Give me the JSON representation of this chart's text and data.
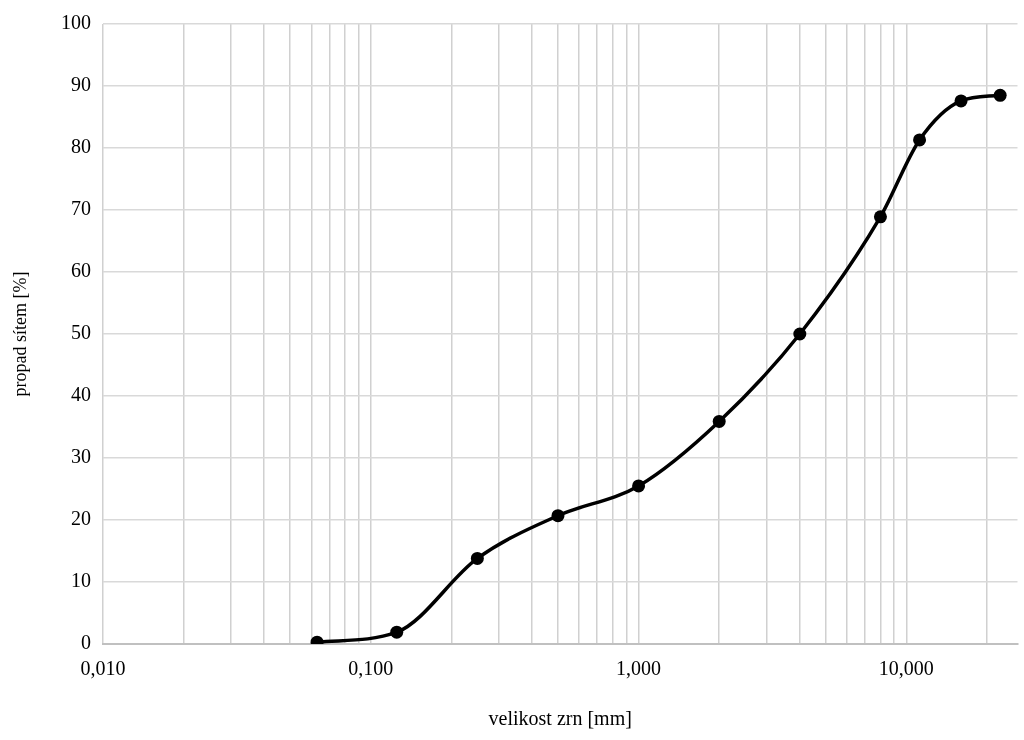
{
  "chart_data": {
    "type": "line",
    "xlabel": "velikost zrn [mm]",
    "ylabel": "propad sítem [%]",
    "x": [
      0.063,
      0.125,
      0.25,
      0.5,
      1,
      2,
      4,
      8,
      11.2,
      16,
      22.4
    ],
    "series": [
      {
        "color": "#000000",
        "values": [
          0.3,
          1.9,
          13.8,
          20.7,
          25.5,
          35.9,
          50,
          68.9,
          81.3,
          87.6,
          88.5
        ]
      }
    ],
    "log": "x",
    "xlim": [
      0.01,
      26
    ],
    "xticks": [
      {
        "value": 0.01,
        "label": "0,010"
      },
      {
        "value": 0.02,
        "label": null
      },
      {
        "value": 0.03,
        "label": null
      },
      {
        "value": 0.04,
        "label": null
      },
      {
        "value": 0.05,
        "label": null
      },
      {
        "value": 0.06,
        "label": null
      },
      {
        "value": 0.07,
        "label": null
      },
      {
        "value": 0.08,
        "label": null
      },
      {
        "value": 0.09,
        "label": null
      },
      {
        "value": 0.1,
        "label": "0,100"
      },
      {
        "value": 0.2,
        "label": null
      },
      {
        "value": 0.3,
        "label": null
      },
      {
        "value": 0.4,
        "label": null
      },
      {
        "value": 0.5,
        "label": null
      },
      {
        "value": 0.6,
        "label": null
      },
      {
        "value": 0.7,
        "label": null
      },
      {
        "value": 0.8,
        "label": null
      },
      {
        "value": 0.9,
        "label": null
      },
      {
        "value": 1,
        "label": "1,000"
      },
      {
        "value": 2,
        "label": null
      },
      {
        "value": 3,
        "label": null
      },
      {
        "value": 4,
        "label": null
      },
      {
        "value": 5,
        "label": null
      },
      {
        "value": 6,
        "label": null
      },
      {
        "value": 7,
        "label": null
      },
      {
        "value": 8,
        "label": null
      },
      {
        "value": 9,
        "label": null
      },
      {
        "value": 10,
        "label": "10,000"
      },
      {
        "value": 20,
        "label": null
      }
    ],
    "ylim": [
      0,
      100
    ],
    "yticks": [
      0,
      10,
      20,
      30,
      40,
      50,
      60,
      70,
      80,
      90,
      100
    ],
    "grid": true,
    "legend": false,
    "marker": "circle",
    "line_style": "solid"
  }
}
